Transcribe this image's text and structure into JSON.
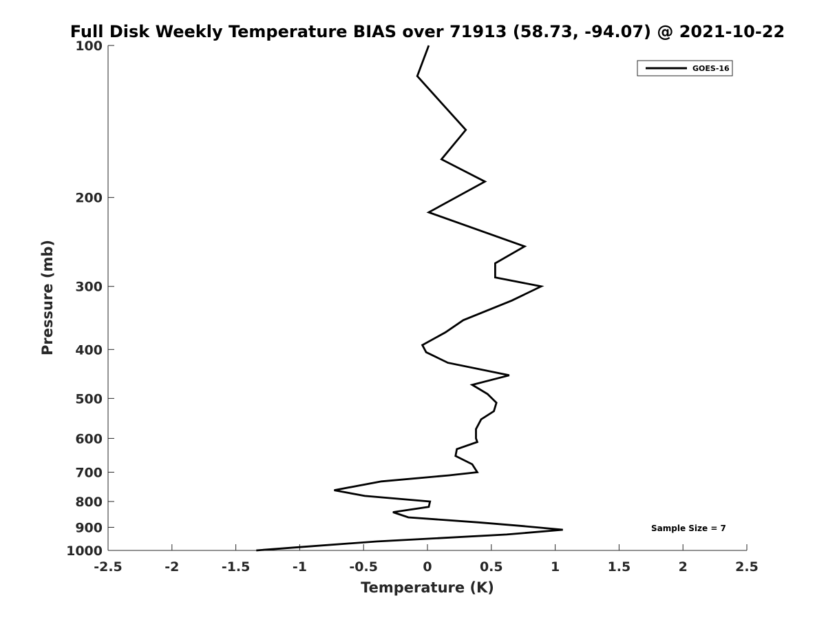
{
  "chart_data": {
    "type": "line",
    "title": "Full Disk Weekly Temperature BIAS over 71913 (58.73, -94.07) @ 2021-10-22",
    "xlabel": "Temperature (K)",
    "ylabel": "Pressure (mb)",
    "xlim": [
      -2.5,
      2.5
    ],
    "ylim": [
      100,
      1000
    ],
    "y_scale": "log",
    "y_reversed": true,
    "x_ticks": [
      -2.5,
      -2,
      -1.5,
      -1,
      -0.5,
      0,
      0.5,
      1,
      1.5,
      2,
      2.5
    ],
    "x_tick_labels": [
      "-2.5",
      "-2",
      "-1.5",
      "-1",
      "-0.5",
      "0",
      "0.5",
      "1",
      "1.5",
      "2",
      "2.5"
    ],
    "y_ticks": [
      100,
      200,
      300,
      400,
      500,
      600,
      700,
      800,
      900,
      1000
    ],
    "y_tick_labels": [
      "100",
      "200",
      "300",
      "400",
      "500",
      "600",
      "700",
      "800",
      "900",
      "1000"
    ],
    "grid": false,
    "legend_position": "top-right",
    "series": [
      {
        "name": "GOES-16",
        "color": "#000000",
        "x": [
          0.01,
          -0.08,
          0.3,
          0.11,
          0.45,
          0.01,
          0.76,
          0.53,
          0.53,
          0.89,
          0.66,
          0.28,
          0.14,
          -0.04,
          -0.01,
          0.16,
          0.64,
          0.35,
          0.47,
          0.54,
          0.52,
          0.42,
          0.38,
          0.38,
          0.39,
          0.23,
          0.22,
          0.35,
          0.39,
          0.17,
          -0.36,
          -0.73,
          -0.49,
          0.02,
          0.01,
          -0.27,
          -0.15,
          0.4,
          0.75,
          1.06,
          0.62,
          -0.4,
          -1.0,
          -1.34
        ],
        "y": [
          100,
          115,
          147,
          168,
          186,
          214,
          250,
          270,
          288,
          300,
          320,
          350,
          370,
          392,
          405,
          425,
          450,
          470,
          490,
          510,
          530,
          550,
          575,
          600,
          610,
          630,
          650,
          675,
          700,
          710,
          730,
          760,
          780,
          800,
          820,
          840,
          860,
          880,
          895,
          910,
          930,
          960,
          985,
          1000
        ]
      }
    ],
    "annotations": [
      {
        "text": "Sample Size = 7"
      }
    ]
  }
}
